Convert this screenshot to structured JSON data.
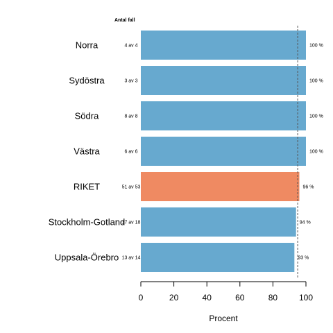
{
  "chart_data": {
    "type": "bar",
    "orientation": "horizontal",
    "categories": [
      "Norra",
      "Sydöstra",
      "Södra",
      "Västra",
      "RIKET",
      "Stockholm-Gotland",
      "Uppsala-Örebro"
    ],
    "values": [
      100,
      100,
      100,
      100,
      96,
      94,
      93
    ],
    "value_labels": [
      "100 %",
      "100 %",
      "100 %",
      "100 %",
      "96 %",
      "94 %",
      "93 %"
    ],
    "counts": [
      "4 av 4",
      "3 av 3",
      "8 av 8",
      "6 av 6",
      "51 av 53",
      "17 av 18",
      "13 av 14"
    ],
    "count_header": "Antal fall",
    "highlight_category": "RIKET",
    "xlabel": "Procent",
    "xlim": [
      0,
      100
    ],
    "xticks": [
      0,
      20,
      40,
      60,
      80,
      100
    ],
    "reference_line": 95,
    "colors": {
      "bar": "#67a9cf",
      "highlight": "#ef8a62",
      "reference": "#555555"
    },
    "grid": false
  }
}
